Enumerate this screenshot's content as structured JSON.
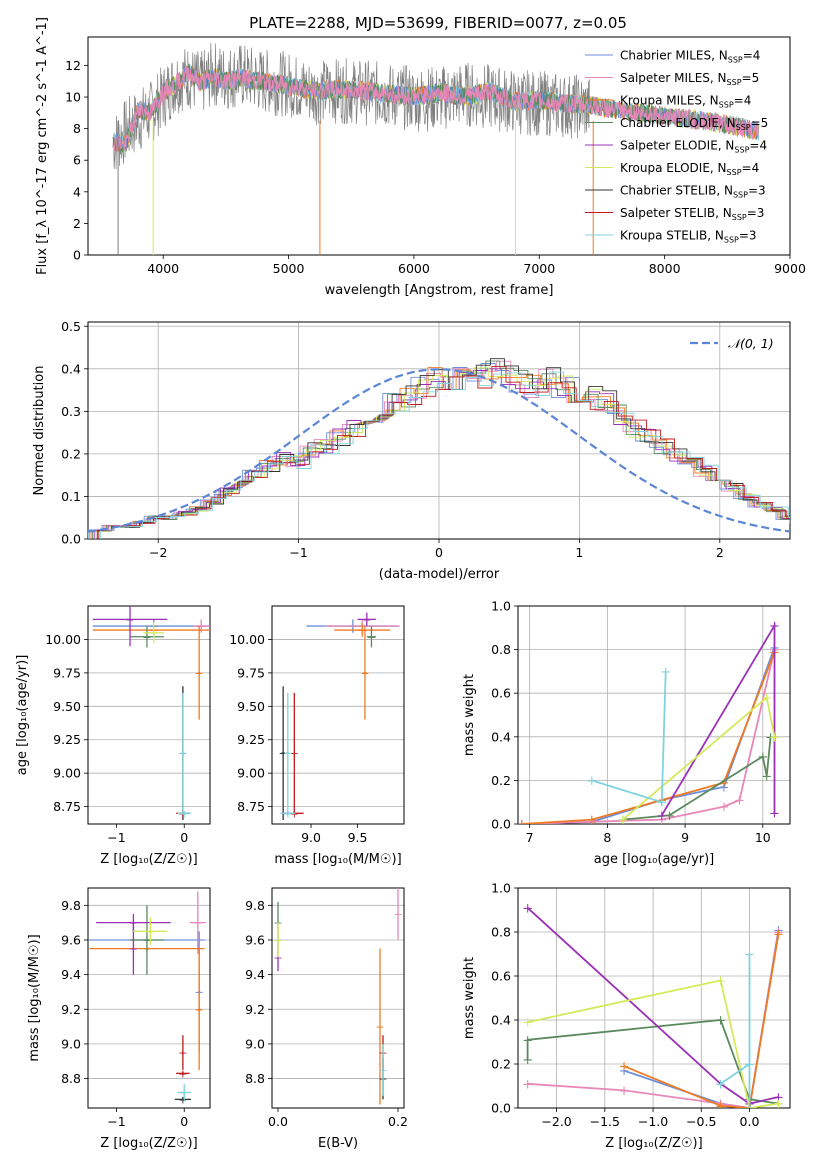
{
  "title": "PLATE=2288, MJD=53699, FIBERID=0077, z=0.05",
  "series_styles": [
    {
      "name": "Chabrier MILES",
      "n": "4",
      "color": "#6b8fdc"
    },
    {
      "name": "Salpeter MILES",
      "n": "5",
      "color": "#e887b8"
    },
    {
      "name": "Kroupa MILES",
      "n": "4",
      "color": "#f07a22"
    },
    {
      "name": "Chabrier ELODIE",
      "n": "5",
      "color": "#5a8a5e"
    },
    {
      "name": "Salpeter ELODIE",
      "n": "4",
      "color": "#9b30b8"
    },
    {
      "name": "Kroupa ELODIE",
      "n": "4",
      "color": "#d4ea5a"
    },
    {
      "name": "Chabrier STELIB",
      "n": "3",
      "color": "#333333"
    },
    {
      "name": "Salpeter STELIB",
      "n": "3",
      "color": "#c0191b"
    },
    {
      "name": "Kroupa STELIB",
      "n": "3",
      "color": "#7fd3dc"
    }
  ],
  "chart_data": [
    {
      "id": "spectrum",
      "type": "line",
      "xlabel": "wavelength [Angstrom, rest frame]",
      "ylabel": "Flux [f_λ 10^-17 erg cm^-2 s^-1 A^-1]",
      "xlim": [
        3400,
        9000
      ],
      "ylim": [
        0,
        13.8
      ],
      "xticks": [
        4000,
        5000,
        6000,
        7000,
        8000,
        9000
      ],
      "yticks": [
        0,
        2,
        4,
        6,
        8,
        10,
        12
      ],
      "observed_color": "#808080",
      "observed": {
        "x": [
          3600,
          3700,
          3800,
          3900,
          4000,
          4100,
          4200,
          4300,
          4400,
          4500,
          4600,
          4800,
          5000,
          5200,
          5400,
          5600,
          5800,
          6000,
          6200,
          6400,
          6600,
          6800,
          7000,
          7200,
          7400
        ],
        "y": [
          7.0,
          7.8,
          8.5,
          9.0,
          10.0,
          11.0,
          11.3,
          10.8,
          11.5,
          11.2,
          11.4,
          11.0,
          10.8,
          10.3,
          10.4,
          10.3,
          10.1,
          9.9,
          9.9,
          10.2,
          10.0,
          9.7,
          9.6,
          9.5,
          9.3
        ]
      },
      "model": {
        "x": [
          3600,
          3700,
          3800,
          3900,
          4000,
          4100,
          4200,
          4300,
          4400,
          4500,
          4600,
          4800,
          5000,
          5200,
          5400,
          5600,
          5800,
          6000,
          6200,
          6400,
          6600,
          6800,
          7000,
          7200,
          7400,
          7600,
          7800,
          8000,
          8200,
          8400,
          8600,
          8750
        ],
        "y": [
          7.2,
          7.0,
          9.2,
          9.0,
          10.3,
          10.8,
          11.6,
          10.9,
          11.3,
          11.0,
          11.2,
          11.0,
          10.7,
          10.4,
          10.5,
          10.4,
          10.2,
          10.0,
          10.3,
          10.0,
          10.4,
          9.7,
          9.8,
          9.6,
          9.5,
          9.2,
          9.0,
          8.8,
          8.6,
          8.4,
          8.1,
          7.8
        ]
      },
      "legend_location": "upper right"
    },
    {
      "id": "residuals",
      "type": "histogram",
      "xlabel": "(data-model)/error",
      "ylabel": "Normed distribution",
      "xlim": [
        -2.5,
        2.5
      ],
      "ylim": [
        0,
        0.51
      ],
      "xticks": [
        -2,
        -1,
        0,
        1,
        2
      ],
      "yticks": [
        0.0,
        0.1,
        0.2,
        0.3,
        0.4,
        0.5
      ],
      "bin_edges_from": -2.5,
      "bin_width": 0.1,
      "values": [
        0.02,
        0.03,
        0.03,
        0.04,
        0.05,
        0.05,
        0.06,
        0.07,
        0.09,
        0.11,
        0.13,
        0.15,
        0.17,
        0.19,
        0.18,
        0.21,
        0.22,
        0.24,
        0.26,
        0.28,
        0.3,
        0.32,
        0.34,
        0.36,
        0.38,
        0.37,
        0.4,
        0.38,
        0.4,
        0.39,
        0.37,
        0.36,
        0.38,
        0.36,
        0.35,
        0.33,
        0.32,
        0.29,
        0.26,
        0.24,
        0.22,
        0.2,
        0.18,
        0.16,
        0.14,
        0.12,
        0.1,
        0.08,
        0.07,
        0.05,
        0.04,
        0.04,
        0.03,
        0.03,
        0.02,
        0.02,
        0.02,
        0.02,
        0.02,
        0.03
      ],
      "reference": {
        "label": "𝒩(0, 1)",
        "mean": 0,
        "sigma": 1,
        "color": "#5b86d6"
      },
      "grid": true
    },
    {
      "id": "age_vs_Z",
      "type": "errorbar",
      "xlabel": "Z [log₁₀(Z/Z☉)]",
      "ylabel": "age  [log₁₀(age/yr)]",
      "xlim": [
        -1.42,
        0.38
      ],
      "ylim": [
        8.62,
        10.25
      ],
      "xticks": [
        -1,
        0
      ],
      "yticks": [
        8.75,
        9.0,
        9.25,
        9.5,
        9.75,
        10.0
      ],
      "points": [
        {
          "s": 0,
          "x": -0.45,
          "y": 10.1,
          "xe": 0.9,
          "ye": 0.05
        },
        {
          "s": 1,
          "x": 0.25,
          "y": 10.1,
          "xe": 0.12,
          "ye": 0.05
        },
        {
          "s": 2,
          "x": -0.45,
          "y": 10.07,
          "xe": 0.9,
          "ye": 0.05
        },
        {
          "s": 2,
          "x": 0.22,
          "y": 9.75,
          "xe": 0.02,
          "ye": 0.35
        },
        {
          "s": 3,
          "x": -0.55,
          "y": 10.02,
          "xe": 0.25,
          "ye": 0.08
        },
        {
          "s": 4,
          "x": -0.8,
          "y": 10.15,
          "xe": 0.55,
          "ye": 0.2
        },
        {
          "s": 5,
          "x": -0.45,
          "y": 10.05,
          "xe": 0.15,
          "ye": 0.08
        },
        {
          "s": 6,
          "x": -0.02,
          "y": 9.15,
          "xe": 0.02,
          "ye": 0.5
        },
        {
          "s": 7,
          "x": -0.02,
          "y": 8.7,
          "xe": 0.1,
          "ye": 0.01
        },
        {
          "s": 8,
          "x": -0.02,
          "y": 9.15,
          "xe": 0.02,
          "ye": 0.45
        },
        {
          "s": 8,
          "x": 0.0,
          "y": 8.7,
          "xe": 0.1,
          "ye": 0.01
        }
      ]
    },
    {
      "id": "age_vs_mass",
      "type": "errorbar",
      "xlabel": "mass [log₁₀(M/M☉)]",
      "ylabel": "",
      "xlim": [
        8.58,
        10.0
      ],
      "ylim": [
        8.62,
        10.25
      ],
      "xticks": [
        9.0,
        9.5
      ],
      "yticks": [
        8.75,
        9.0,
        9.25,
        9.5,
        9.75,
        10.0
      ],
      "points": [
        {
          "s": 0,
          "x": 9.45,
          "y": 10.1,
          "xe": 0.5,
          "ye": 0.05
        },
        {
          "s": 1,
          "x": 9.55,
          "y": 10.1,
          "xe": 0.4,
          "ye": 0.05
        },
        {
          "s": 2,
          "x": 9.55,
          "y": 10.07,
          "xe": 0.3,
          "ye": 0.05
        },
        {
          "s": 2,
          "x": 9.58,
          "y": 9.75,
          "xe": 0.02,
          "ye": 0.35
        },
        {
          "s": 3,
          "x": 9.65,
          "y": 10.02,
          "xe": 0.05,
          "ye": 0.08
        },
        {
          "s": 4,
          "x": 9.6,
          "y": 10.15,
          "xe": 0.1,
          "ye": 0.05
        },
        {
          "s": 6,
          "x": 8.7,
          "y": 9.15,
          "xe": 0.02,
          "ye": 0.5
        },
        {
          "s": 7,
          "x": 8.82,
          "y": 8.7,
          "xe": 0.1,
          "ye": 0.01
        },
        {
          "s": 7,
          "x": 8.82,
          "y": 9.15,
          "xe": 0.0,
          "ye": 0.45
        },
        {
          "s": 8,
          "x": 8.75,
          "y": 9.15,
          "xe": 0.02,
          "ye": 0.45
        },
        {
          "s": 8,
          "x": 8.75,
          "y": 8.7,
          "xe": 0.08,
          "ye": 0.01
        }
      ]
    },
    {
      "id": "massweight_vs_age",
      "type": "line",
      "xlabel": "age  [log₁₀(age/yr)]",
      "ylabel": "mass weight",
      "xlim": [
        6.85,
        10.35
      ],
      "ylim": [
        0,
        1.0
      ],
      "xticks": [
        7,
        8,
        9,
        10
      ],
      "yticks": [
        0.0,
        0.2,
        0.4,
        0.6,
        0.8,
        1.0
      ],
      "grid": true,
      "series": [
        {
          "s": 0,
          "x": [
            6.9,
            7.8,
            8.7,
            9.5,
            10.15
          ],
          "y": [
            0.0,
            0.01,
            0.11,
            0.17,
            0.81
          ]
        },
        {
          "s": 1,
          "x": [
            6.9,
            7.8,
            8.7,
            9.5,
            9.7,
            10.15
          ],
          "y": [
            0.0,
            0.01,
            0.02,
            0.08,
            0.11,
            0.8
          ]
        },
        {
          "s": 2,
          "x": [
            6.9,
            7.8,
            8.7,
            9.5,
            10.15
          ],
          "y": [
            0.0,
            0.02,
            0.11,
            0.19,
            0.79
          ]
        },
        {
          "s": 3,
          "x": [
            8.2,
            8.8,
            10.0,
            10.05,
            10.1
          ],
          "y": [
            0.02,
            0.04,
            0.31,
            0.22,
            0.4
          ]
        },
        {
          "s": 4,
          "x": [
            8.7,
            10.15,
            10.15
          ],
          "y": [
            0.04,
            0.91,
            0.05
          ]
        },
        {
          "s": 5,
          "x": [
            8.2,
            10.05,
            10.15
          ],
          "y": [
            0.02,
            0.58,
            0.4
          ]
        },
        {
          "s": 8,
          "x": [
            7.8,
            8.7,
            8.75,
            8.7
          ],
          "y": [
            0.2,
            0.1,
            0.7,
            0.1
          ]
        }
      ]
    },
    {
      "id": "mass_vs_Z",
      "type": "errorbar",
      "xlabel": "Z [log₁₀(Z/Z☉)]",
      "ylabel": "mass [log₁₀(M/M☉)]",
      "xlim": [
        -1.42,
        0.38
      ],
      "ylim": [
        8.63,
        9.9
      ],
      "xticks": [
        -1,
        0
      ],
      "yticks": [
        8.8,
        9.0,
        9.2,
        9.4,
        9.6,
        9.8
      ],
      "points": [
        {
          "s": 0,
          "x": -0.55,
          "y": 9.6,
          "xe": 0.85,
          "ye": 0.02
        },
        {
          "s": 0,
          "x": 0.22,
          "y": 9.3,
          "xe": 0.02,
          "ye": 0.35
        },
        {
          "s": 1,
          "x": 0.2,
          "y": 9.7,
          "xe": 0.12,
          "ye": 0.18
        },
        {
          "s": 2,
          "x": -0.55,
          "y": 9.55,
          "xe": 0.85,
          "ye": 0.02
        },
        {
          "s": 2,
          "x": 0.22,
          "y": 9.2,
          "xe": 0.02,
          "ye": 0.35
        },
        {
          "s": 3,
          "x": -0.55,
          "y": 9.6,
          "xe": 0.25,
          "ye": 0.2
        },
        {
          "s": 4,
          "x": -0.75,
          "y": 9.7,
          "xe": 0.55,
          "ye": 0.05
        },
        {
          "s": 4,
          "x": -0.75,
          "y": 9.55,
          "xe": 0.0,
          "ye": 0.15
        },
        {
          "s": 5,
          "x": -0.5,
          "y": 9.65,
          "xe": 0.25,
          "ye": 0.08
        },
        {
          "s": 6,
          "x": -0.02,
          "y": 8.68,
          "xe": 0.12,
          "ye": 0.01
        },
        {
          "s": 7,
          "x": -0.02,
          "y": 8.83,
          "xe": 0.1,
          "ye": 0.01
        },
        {
          "s": 7,
          "x": -0.02,
          "y": 8.95,
          "xe": 0.0,
          "ye": 0.1
        },
        {
          "s": 8,
          "x": 0.0,
          "y": 8.72,
          "xe": 0.1,
          "ye": 0.05
        }
      ]
    },
    {
      "id": "mass_vs_ebv",
      "type": "errorbar",
      "xlabel": "E(B-V)",
      "ylabel": "",
      "xlim": [
        -0.01,
        0.21
      ],
      "ylim": [
        8.63,
        9.9
      ],
      "xticks": [
        0.0,
        0.2
      ],
      "yticks": [
        8.8,
        9.0,
        9.2,
        9.4,
        9.6,
        9.8
      ],
      "points": [
        {
          "s": 1,
          "x": 0.2,
          "y": 9.75,
          "xe": 0.0,
          "ye": 0.15
        },
        {
          "s": 2,
          "x": 0.17,
          "y": 9.1,
          "xe": 0.0,
          "ye": 0.45
        },
        {
          "s": 3,
          "x": 0.0,
          "y": 9.7,
          "xe": 0.0,
          "ye": 0.12
        },
        {
          "s": 4,
          "x": 0.0,
          "y": 9.5,
          "xe": 0.0,
          "ye": 0.08
        },
        {
          "s": 5,
          "x": 0.0,
          "y": 9.6,
          "xe": 0.0,
          "ye": 0.1
        },
        {
          "s": 6,
          "x": 0.175,
          "y": 8.8,
          "xe": 0.0,
          "ye": 0.12
        },
        {
          "s": 7,
          "x": 0.175,
          "y": 8.95,
          "xe": 0.0,
          "ye": 0.1
        },
        {
          "s": 8,
          "x": 0.175,
          "y": 8.85,
          "xe": 0.0,
          "ye": 0.15
        }
      ]
    },
    {
      "id": "massweight_vs_Z",
      "type": "line",
      "xlabel": "Z [log₁₀(Z/Z☉)]",
      "ylabel": "mass weight",
      "xlim": [
        -2.4,
        0.42
      ],
      "ylim": [
        0,
        1.0
      ],
      "xticks": [
        -2.0,
        -1.5,
        -1.0,
        -0.5,
        0.0
      ],
      "grid": true,
      "yticks": [
        0.0,
        0.2,
        0.4,
        0.6,
        0.8,
        1.0
      ],
      "series": [
        {
          "s": 0,
          "x": [
            -1.3,
            -0.3,
            0.0,
            0.3
          ],
          "y": [
            0.17,
            0.02,
            0.0,
            0.81
          ]
        },
        {
          "s": 1,
          "x": [
            -2.3,
            -1.3,
            -0.3,
            0.0,
            0.3
          ],
          "y": [
            0.11,
            0.08,
            0.02,
            0.0,
            0.8
          ]
        },
        {
          "s": 2,
          "x": [
            -1.3,
            -0.3,
            0.0,
            0.3
          ],
          "y": [
            0.19,
            0.01,
            0.0,
            0.79
          ]
        },
        {
          "s": 3,
          "x": [
            -2.3,
            -2.3,
            -0.3,
            0.0,
            0.3
          ],
          "y": [
            0.22,
            0.31,
            0.4,
            0.04,
            0.02
          ]
        },
        {
          "s": 4,
          "x": [
            -2.3,
            -0.3,
            0.0,
            0.3
          ],
          "y": [
            0.91,
            0.11,
            0.02,
            0.05
          ]
        },
        {
          "s": 5,
          "x": [
            -2.3,
            -0.3,
            0.0,
            0.3
          ],
          "y": [
            0.39,
            0.58,
            0.0,
            0.02
          ]
        },
        {
          "s": 8,
          "x": [
            -0.3,
            0.0,
            0.0,
            0.0
          ],
          "y": [
            0.11,
            0.2,
            0.7,
            0.0
          ]
        }
      ]
    }
  ]
}
